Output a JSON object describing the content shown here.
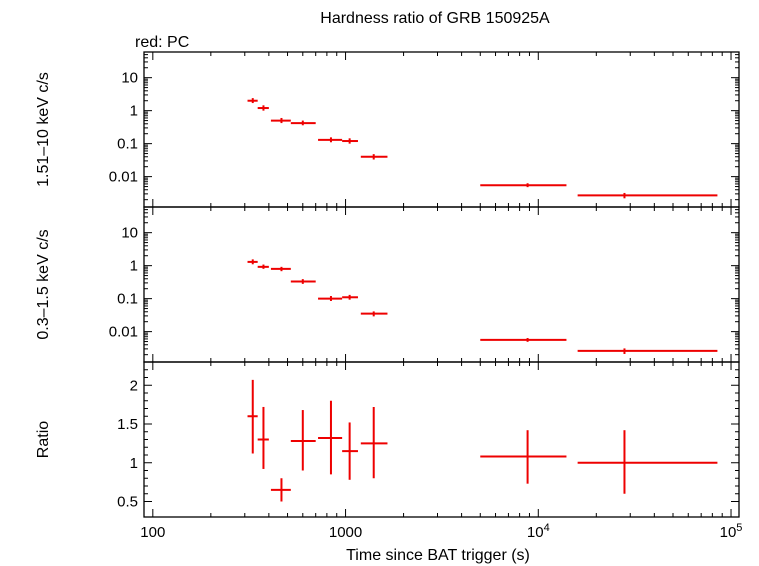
{
  "title": "Hardness ratio of GRB 150925A",
  "legend_label": "red: PC",
  "chart_data": {
    "type": "scatter",
    "title": "Hardness ratio of GRB 150925A",
    "legend": "red: PC",
    "xlabel": "Time since BAT trigger (s)",
    "xscale": "log",
    "xlim": [
      90,
      110000
    ],
    "x_ticks": [
      {
        "value": 100,
        "label": "100"
      },
      {
        "value": 1000,
        "label": "1000"
      },
      {
        "value": 10000,
        "label": "10",
        "sup": "4"
      },
      {
        "value": 100000,
        "label": "10",
        "sup": "5"
      }
    ],
    "series_color": "#ee0000",
    "panels": [
      {
        "ylabel": "1.51–10 keV c/s",
        "yscale": "log",
        "ylim": [
          0.0012,
          60
        ],
        "y_ticks": [
          {
            "value": 10,
            "label": "10"
          },
          {
            "value": 1,
            "label": "1"
          },
          {
            "value": 0.1,
            "label": "0.1"
          },
          {
            "value": 0.01,
            "label": "0.01"
          }
        ],
        "points": [
          {
            "x": 330,
            "xlo": 310,
            "xhi": 350,
            "y": 2.0,
            "ylo": 1.7,
            "yhi": 2.4
          },
          {
            "x": 375,
            "xlo": 350,
            "xhi": 400,
            "y": 1.2,
            "ylo": 1.0,
            "yhi": 1.45
          },
          {
            "x": 465,
            "xlo": 410,
            "xhi": 520,
            "y": 0.5,
            "ylo": 0.42,
            "yhi": 0.6
          },
          {
            "x": 600,
            "xlo": 520,
            "xhi": 700,
            "y": 0.42,
            "ylo": 0.36,
            "yhi": 0.5
          },
          {
            "x": 840,
            "xlo": 720,
            "xhi": 960,
            "y": 0.13,
            "ylo": 0.11,
            "yhi": 0.155
          },
          {
            "x": 1050,
            "xlo": 960,
            "xhi": 1160,
            "y": 0.12,
            "ylo": 0.1,
            "yhi": 0.145
          },
          {
            "x": 1400,
            "xlo": 1200,
            "xhi": 1650,
            "y": 0.04,
            "ylo": 0.033,
            "yhi": 0.048
          },
          {
            "x": 8800,
            "xlo": 5000,
            "xhi": 14000,
            "y": 0.0055,
            "ylo": 0.0048,
            "yhi": 0.0063
          },
          {
            "x": 28000,
            "xlo": 16000,
            "xhi": 85000,
            "y": 0.0027,
            "ylo": 0.0022,
            "yhi": 0.0032
          }
        ]
      },
      {
        "ylabel": "0.3–1.5 keV c/s",
        "yscale": "log",
        "ylim": [
          0.0012,
          60
        ],
        "y_ticks": [
          {
            "value": 10,
            "label": "10"
          },
          {
            "value": 1,
            "label": "1"
          },
          {
            "value": 0.1,
            "label": "0.1"
          },
          {
            "value": 0.01,
            "label": "0.01"
          }
        ],
        "points": [
          {
            "x": 330,
            "xlo": 310,
            "xhi": 350,
            "y": 1.3,
            "ylo": 1.1,
            "yhi": 1.55
          },
          {
            "x": 375,
            "xlo": 350,
            "xhi": 400,
            "y": 0.92,
            "ylo": 0.8,
            "yhi": 1.08
          },
          {
            "x": 465,
            "xlo": 410,
            "xhi": 520,
            "y": 0.8,
            "ylo": 0.68,
            "yhi": 0.92
          },
          {
            "x": 600,
            "xlo": 520,
            "xhi": 700,
            "y": 0.33,
            "ylo": 0.28,
            "yhi": 0.39
          },
          {
            "x": 840,
            "xlo": 720,
            "xhi": 960,
            "y": 0.1,
            "ylo": 0.085,
            "yhi": 0.12
          },
          {
            "x": 1050,
            "xlo": 960,
            "xhi": 1160,
            "y": 0.11,
            "ylo": 0.093,
            "yhi": 0.13
          },
          {
            "x": 1400,
            "xlo": 1200,
            "xhi": 1650,
            "y": 0.035,
            "ylo": 0.029,
            "yhi": 0.041
          },
          {
            "x": 8800,
            "xlo": 5000,
            "xhi": 14000,
            "y": 0.0056,
            "ylo": 0.0049,
            "yhi": 0.0064
          },
          {
            "x": 28000,
            "xlo": 16000,
            "xhi": 85000,
            "y": 0.0026,
            "ylo": 0.0021,
            "yhi": 0.0031
          }
        ]
      },
      {
        "ylabel": "Ratio",
        "yscale": "linear",
        "ylim": [
          0.3,
          2.3
        ],
        "y_ticks": [
          {
            "value": 2,
            "label": "2"
          },
          {
            "value": 1.5,
            "label": "1.5"
          },
          {
            "value": 1,
            "label": "1"
          },
          {
            "value": 0.5,
            "label": "0.5"
          }
        ],
        "points": [
          {
            "x": 330,
            "xlo": 310,
            "xhi": 350,
            "y": 1.6,
            "ylo": 1.12,
            "yhi": 2.07
          },
          {
            "x": 375,
            "xlo": 350,
            "xhi": 400,
            "y": 1.3,
            "ylo": 0.92,
            "yhi": 1.72
          },
          {
            "x": 465,
            "xlo": 410,
            "xhi": 520,
            "y": 0.65,
            "ylo": 0.5,
            "yhi": 0.8
          },
          {
            "x": 600,
            "xlo": 520,
            "xhi": 700,
            "y": 1.28,
            "ylo": 0.9,
            "yhi": 1.68
          },
          {
            "x": 840,
            "xlo": 720,
            "xhi": 960,
            "y": 1.32,
            "ylo": 0.85,
            "yhi": 1.8
          },
          {
            "x": 1050,
            "xlo": 960,
            "xhi": 1160,
            "y": 1.15,
            "ylo": 0.78,
            "yhi": 1.52
          },
          {
            "x": 1400,
            "xlo": 1200,
            "xhi": 1650,
            "y": 1.25,
            "ylo": 0.8,
            "yhi": 1.72
          },
          {
            "x": 8800,
            "xlo": 5000,
            "xhi": 14000,
            "y": 1.08,
            "ylo": 0.73,
            "yhi": 1.42
          },
          {
            "x": 28000,
            "xlo": 16000,
            "xhi": 85000,
            "y": 1.0,
            "ylo": 0.6,
            "yhi": 1.42
          }
        ]
      }
    ]
  }
}
